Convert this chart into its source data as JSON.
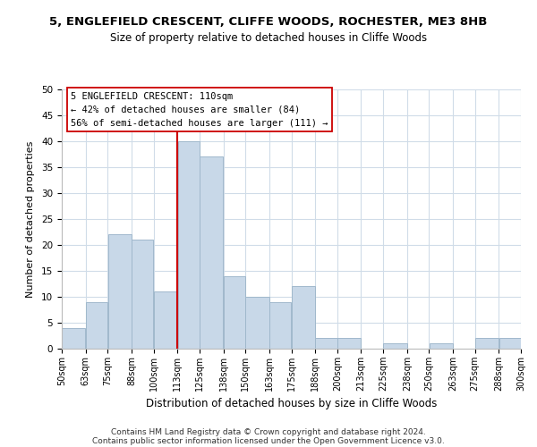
{
  "title": "5, ENGLEFIELD CRESCENT, CLIFFE WOODS, ROCHESTER, ME3 8HB",
  "subtitle": "Size of property relative to detached houses in Cliffe Woods",
  "xlabel": "Distribution of detached houses by size in Cliffe Woods",
  "ylabel": "Number of detached properties",
  "bar_color": "#c8d8e8",
  "bar_edgecolor": "#a0b8cc",
  "vline_color": "#cc0000",
  "annotation_lines": [
    "5 ENGLEFIELD CRESCENT: 110sqm",
    "← 42% of detached houses are smaller (84)",
    "56% of semi-detached houses are larger (111) →"
  ],
  "bin_edges": [
    50,
    63,
    75,
    88,
    100,
    113,
    125,
    138,
    150,
    163,
    175,
    188,
    200,
    213,
    225,
    238,
    250,
    263,
    275,
    288,
    300
  ],
  "bar_heights": [
    4,
    9,
    22,
    21,
    11,
    40,
    37,
    14,
    10,
    9,
    12,
    2,
    2,
    0,
    1,
    0,
    1,
    0,
    2,
    2
  ],
  "ylim": [
    0,
    50
  ],
  "yticks": [
    0,
    5,
    10,
    15,
    20,
    25,
    30,
    35,
    40,
    45,
    50
  ],
  "footer_lines": [
    "Contains HM Land Registry data © Crown copyright and database right 2024.",
    "Contains public sector information licensed under the Open Government Licence v3.0."
  ],
  "background_color": "#ffffff",
  "grid_color": "#d0dce8"
}
